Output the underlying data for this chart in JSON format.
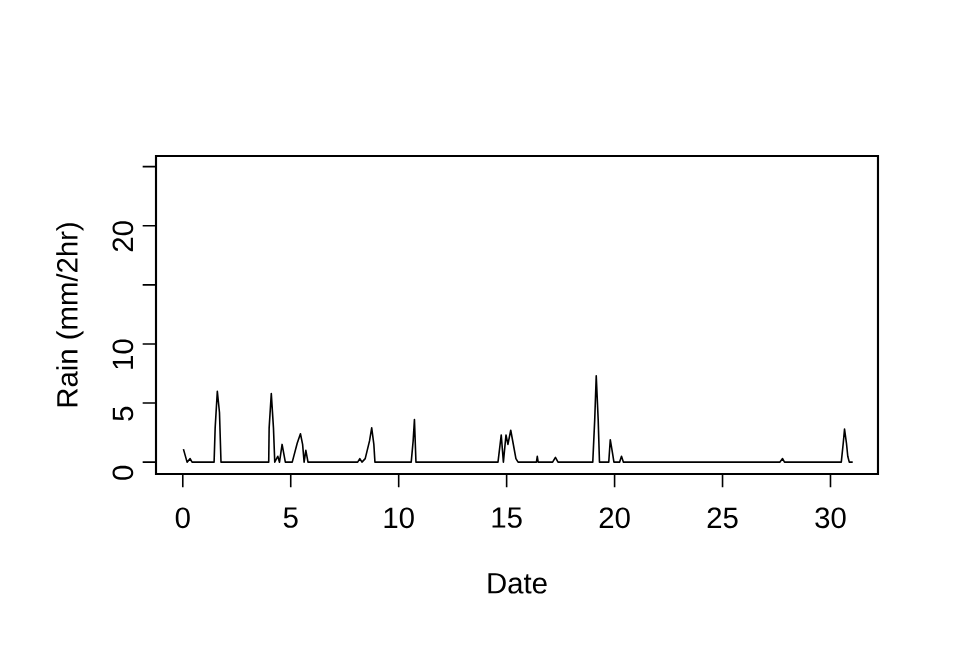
{
  "chart_data": {
    "type": "line",
    "xlabel": "Date",
    "ylabel": "Rain (mm/2hr)",
    "color": "#000000",
    "x": [
      0.03,
      0.2,
      0.34,
      0.43,
      1.45,
      1.5,
      1.6,
      1.7,
      1.77,
      3.98,
      4.0,
      4.1,
      4.2,
      4.26,
      4.4,
      4.48,
      4.6,
      4.75,
      5.07,
      5.3,
      5.45,
      5.55,
      5.62,
      5.7,
      5.8,
      8.1,
      8.2,
      8.3,
      8.45,
      8.65,
      8.75,
      8.85,
      8.9,
      10.58,
      10.67,
      10.73,
      10.8,
      14.6,
      14.75,
      14.85,
      14.97,
      15.06,
      15.19,
      15.3,
      15.43,
      15.53,
      16.38,
      16.42,
      16.46,
      17.13,
      17.26,
      17.38,
      18.99,
      19.08,
      19.15,
      19.24,
      19.3,
      19.73,
      19.8,
      19.9,
      19.97,
      20.23,
      20.32,
      20.41,
      27.65,
      27.78,
      27.87,
      30.5,
      30.59,
      30.65,
      30.74,
      30.8,
      30.87,
      31.03
    ],
    "values": [
      1.1,
      0,
      0.3,
      0,
      0,
      2.9,
      6.0,
      4.2,
      0,
      0,
      2.9,
      5.8,
      2.9,
      0,
      0.5,
      0,
      1.5,
      0,
      0,
      1.6,
      2.4,
      1.5,
      0,
      1.0,
      0,
      0,
      0.3,
      0,
      0.3,
      1.8,
      2.9,
      1.5,
      0,
      0,
      1.8,
      3.6,
      0,
      0,
      2.3,
      0,
      2.3,
      1.5,
      2.7,
      1.6,
      0.3,
      0,
      0,
      0.5,
      0,
      0,
      0.4,
      0,
      0,
      3.6,
      7.3,
      3.6,
      0,
      0,
      1.9,
      0.8,
      0,
      0,
      0.5,
      0,
      0,
      0.3,
      0,
      0,
      1.6,
      2.8,
      1.6,
      0.5,
      0,
      0
    ],
    "xlim": [
      -1.24,
      32.2
    ],
    "ylim": [
      -1.0,
      25.9
    ],
    "xticks": [
      0,
      5,
      10,
      15,
      20,
      25,
      30
    ],
    "yticks": [
      0,
      5,
      10,
      {
        "value": 15,
        "label": null
      },
      20,
      {
        "value": 25,
        "label": null
      }
    ],
    "grid": false,
    "marker": "none",
    "line_style": "solid"
  }
}
